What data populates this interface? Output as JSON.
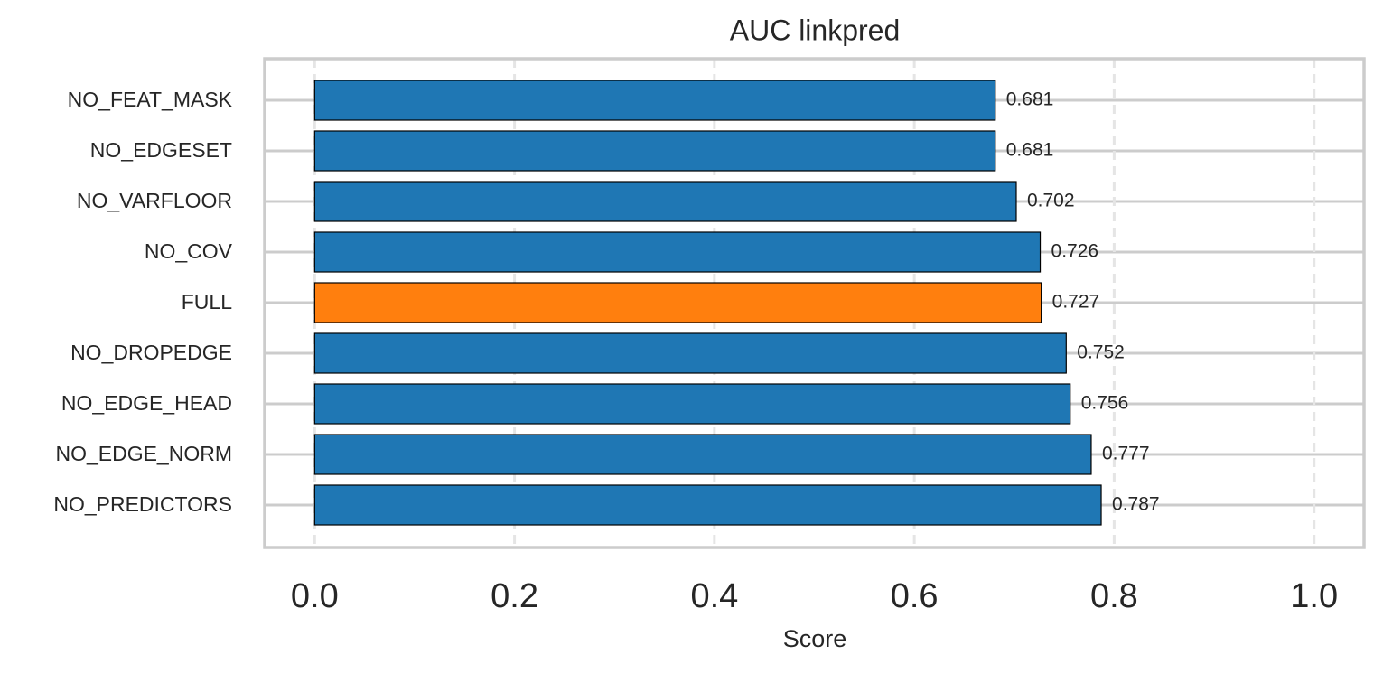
{
  "chart_data": {
    "type": "barh",
    "title": "AUC linkpred",
    "xlabel": "Score",
    "categories": [
      "NO_FEAT_MASK",
      "NO_EDGESET",
      "NO_VARFLOOR",
      "NO_COV",
      "FULL",
      "NO_DROPEDGE",
      "NO_EDGE_HEAD",
      "NO_EDGE_NORM",
      "NO_PREDICTORS"
    ],
    "values": [
      0.681,
      0.681,
      0.702,
      0.726,
      0.727,
      0.752,
      0.756,
      0.777,
      0.787
    ],
    "colors": [
      "#1f77b4",
      "#1f77b4",
      "#1f77b4",
      "#1f77b4",
      "#ff7f0e",
      "#1f77b4",
      "#1f77b4",
      "#1f77b4",
      "#1f77b4"
    ],
    "xlim": [
      -0.05,
      1.05
    ],
    "xticks": [
      {
        "value": 0,
        "label": "0.0"
      },
      {
        "value": 0.2,
        "label": "0.2"
      },
      {
        "value": 0.4,
        "label": "0.4"
      },
      {
        "value": 0.6,
        "label": "0.6"
      },
      {
        "value": 0.8,
        "label": "0.8"
      },
      {
        "value": 1,
        "label": "1.0"
      }
    ],
    "grid": true
  }
}
